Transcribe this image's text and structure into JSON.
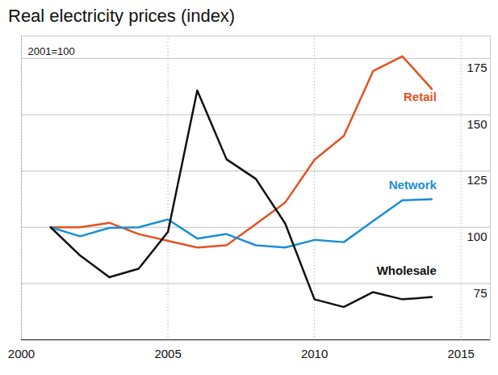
{
  "chart_data": {
    "type": "line",
    "title": "Real electricity prices (index)",
    "note": "2001=100",
    "x": [
      2001,
      2002,
      2003,
      2004,
      2005,
      2006,
      2007,
      2008,
      2009,
      2010,
      2011,
      2012,
      2013,
      2014
    ],
    "series": [
      {
        "name": "Retail",
        "color": "#e2531f",
        "values": [
          100,
          100,
          102,
          97,
          94,
          91,
          92,
          101.4,
          111,
          130,
          140.6,
          169.4,
          176,
          161.5
        ]
      },
      {
        "name": "Network",
        "color": "#1a8fd5",
        "values": [
          100,
          96,
          99.7,
          100,
          103.5,
          95,
          97,
          92,
          91,
          94.4,
          93.4,
          102.8,
          112,
          112.5
        ]
      },
      {
        "name": "Wholesale",
        "color": "#111111",
        "values": [
          100,
          87.5,
          77.8,
          81.6,
          97.9,
          160.8,
          130.2,
          121.5,
          101.7,
          68,
          64.6,
          71.2,
          68,
          69
        ]
      }
    ],
    "xlim": [
      2000,
      2016
    ],
    "ylim": [
      50,
      185
    ],
    "xticks": [
      2000,
      2005,
      2010,
      2015
    ],
    "yticks": [
      75,
      100,
      125,
      150,
      175
    ],
    "grid": true
  }
}
